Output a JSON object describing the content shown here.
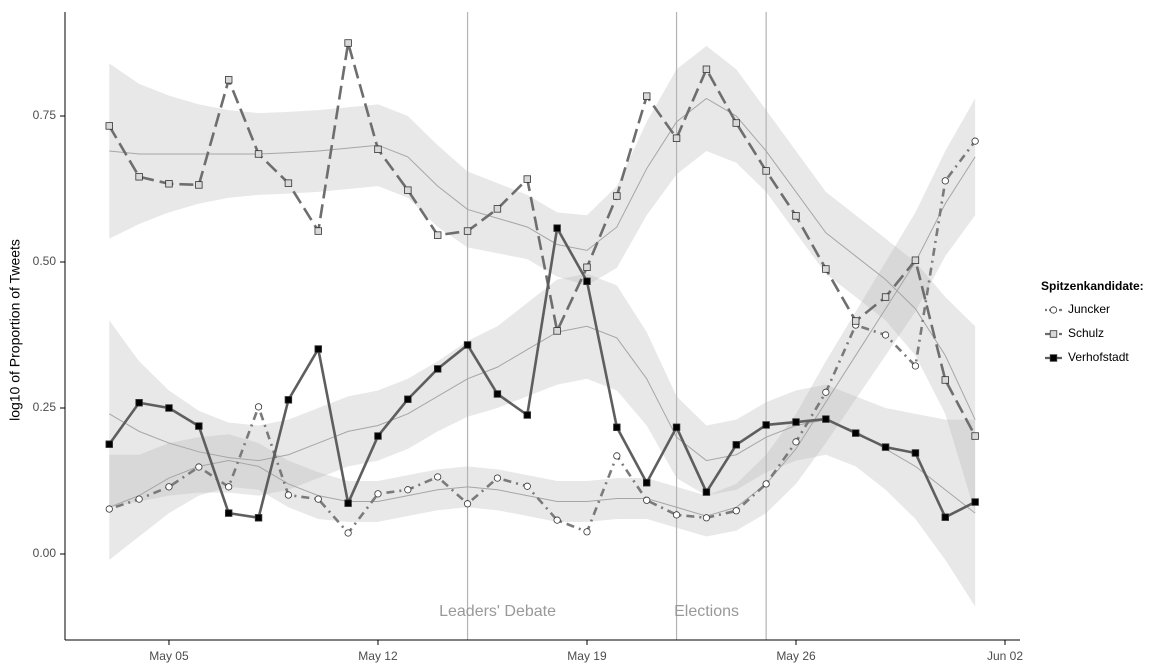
{
  "chart_data": {
    "type": "line",
    "y_label": "log10 of Proportion of Tweets",
    "legend_title": "Spitzenkandidate:",
    "legend": "right",
    "x": [
      "May 03",
      "May 04",
      "May 05",
      "May 06",
      "May 07",
      "May 08",
      "May 09",
      "May 10",
      "May 11",
      "May 12",
      "May 13",
      "May 14",
      "May 15",
      "May 16",
      "May 17",
      "May 18",
      "May 19",
      "May 20",
      "May 21",
      "May 22",
      "May 23",
      "May 24",
      "May 25",
      "May 26",
      "May 27",
      "May 28",
      "May 29",
      "May 30",
      "May 31",
      "Jun 01"
    ],
    "xlim": [
      "May 02",
      "Jun 02"
    ],
    "xticks": [
      "May 05",
      "May 12",
      "May 19",
      "May 26",
      "Jun 02"
    ],
    "ylim": [
      -0.15,
      0.93
    ],
    "yticks": [
      {
        "value": 0,
        "label": "0.00"
      },
      0.25,
      {
        "value": 0.5,
        "label": "0.50"
      },
      0.75
    ],
    "annotations": [
      {
        "x": "May 15",
        "label": "Leaders' Debate"
      },
      {
        "x": "May 22",
        "label": "Elections"
      },
      {
        "x": "May 25"
      }
    ],
    "series": [
      {
        "name": "Juncker",
        "color": "#7a7a7a",
        "marker": "circle",
        "marker_fill": "#ffffff",
        "linestyle": "dashdot",
        "values": [
          0.077,
          0.094,
          0.115,
          0.149,
          0.115,
          0.252,
          0.101,
          0.094,
          0.036,
          0.103,
          0.11,
          0.132,
          0.086,
          0.13,
          0.116,
          0.058,
          0.038,
          0.168,
          0.092,
          0.067,
          0.062,
          0.074,
          0.12,
          0.192,
          0.277,
          0.392,
          0.375,
          0.322,
          0.639,
          0.707
        ],
        "fit": [
          0.08,
          0.1,
          0.13,
          0.15,
          0.16,
          0.15,
          0.12,
          0.1,
          0.09,
          0.09,
          0.1,
          0.11,
          0.115,
          0.11,
          0.1,
          0.09,
          0.09,
          0.095,
          0.095,
          0.08,
          0.065,
          0.08,
          0.12,
          0.18,
          0.26,
          0.34,
          0.42,
          0.5,
          0.6,
          0.68
        ],
        "lower": [
          -0.01,
          0.03,
          0.07,
          0.1,
          0.115,
          0.11,
          0.08,
          0.06,
          0.055,
          0.055,
          0.065,
          0.075,
          0.08,
          0.075,
          0.065,
          0.055,
          0.055,
          0.06,
          0.06,
          0.045,
          0.03,
          0.04,
          0.07,
          0.12,
          0.19,
          0.265,
          0.34,
          0.415,
          0.51,
          0.58
        ],
        "upper": [
          0.17,
          0.17,
          0.19,
          0.2,
          0.205,
          0.19,
          0.16,
          0.14,
          0.125,
          0.125,
          0.135,
          0.145,
          0.15,
          0.145,
          0.135,
          0.125,
          0.125,
          0.13,
          0.13,
          0.115,
          0.1,
          0.12,
          0.17,
          0.24,
          0.33,
          0.415,
          0.5,
          0.585,
          0.69,
          0.78
        ]
      },
      {
        "name": "Schulz",
        "color": "#6e6e6e",
        "marker": "square",
        "marker_fill": "#d9d9d9",
        "linestyle": "dashed",
        "values": [
          0.733,
          0.646,
          0.634,
          0.632,
          0.812,
          0.685,
          0.635,
          0.553,
          0.875,
          0.693,
          0.623,
          0.546,
          0.553,
          0.591,
          0.642,
          0.382,
          0.491,
          0.613,
          0.784,
          0.712,
          0.83,
          0.738,
          0.656,
          0.579,
          0.488,
          0.399,
          0.44,
          0.503,
          0.298,
          0.202
        ],
        "fit": [
          0.69,
          0.685,
          0.685,
          0.685,
          0.685,
          0.685,
          0.687,
          0.69,
          0.695,
          0.7,
          0.68,
          0.63,
          0.59,
          0.575,
          0.56,
          0.53,
          0.52,
          0.56,
          0.66,
          0.74,
          0.78,
          0.75,
          0.69,
          0.62,
          0.55,
          0.51,
          0.47,
          0.42,
          0.34,
          0.23
        ],
        "lower": [
          0.54,
          0.565,
          0.585,
          0.6,
          0.61,
          0.615,
          0.617,
          0.62,
          0.625,
          0.63,
          0.61,
          0.56,
          0.525,
          0.515,
          0.505,
          0.475,
          0.46,
          0.49,
          0.58,
          0.65,
          0.69,
          0.67,
          0.62,
          0.55,
          0.48,
          0.44,
          0.4,
          0.34,
          0.24,
          0.07
        ],
        "upper": [
          0.84,
          0.805,
          0.785,
          0.77,
          0.76,
          0.755,
          0.757,
          0.76,
          0.765,
          0.77,
          0.75,
          0.7,
          0.655,
          0.635,
          0.615,
          0.585,
          0.58,
          0.63,
          0.74,
          0.83,
          0.87,
          0.83,
          0.76,
          0.69,
          0.62,
          0.58,
          0.54,
          0.5,
          0.44,
          0.39
        ]
      },
      {
        "name": "Verhofstadt",
        "color": "#5e5e5e",
        "marker": "square",
        "marker_fill": "#000000",
        "linestyle": "solid",
        "values": [
          0.188,
          0.259,
          0.25,
          0.219,
          0.07,
          0.062,
          0.264,
          0.351,
          0.087,
          0.202,
          0.265,
          0.317,
          0.358,
          0.274,
          0.238,
          0.558,
          0.467,
          0.217,
          0.122,
          0.217,
          0.106,
          0.187,
          0.221,
          0.226,
          0.231,
          0.207,
          0.183,
          0.173,
          0.063,
          0.089
        ],
        "fit": [
          0.24,
          0.21,
          0.19,
          0.175,
          0.165,
          0.16,
          0.17,
          0.19,
          0.21,
          0.22,
          0.24,
          0.27,
          0.3,
          0.32,
          0.35,
          0.38,
          0.39,
          0.37,
          0.3,
          0.2,
          0.16,
          0.17,
          0.2,
          0.22,
          0.23,
          0.21,
          0.18,
          0.15,
          0.11,
          0.07
        ],
        "lower": [
          0.08,
          0.09,
          0.1,
          0.105,
          0.105,
          0.1,
          0.11,
          0.13,
          0.15,
          0.16,
          0.18,
          0.21,
          0.235,
          0.25,
          0.27,
          0.29,
          0.3,
          0.28,
          0.22,
          0.13,
          0.1,
          0.11,
          0.14,
          0.16,
          0.17,
          0.15,
          0.11,
          0.06,
          -0.01,
          -0.09
        ],
        "upper": [
          0.4,
          0.33,
          0.28,
          0.245,
          0.225,
          0.22,
          0.23,
          0.25,
          0.27,
          0.28,
          0.3,
          0.33,
          0.365,
          0.39,
          0.43,
          0.47,
          0.48,
          0.46,
          0.38,
          0.27,
          0.22,
          0.23,
          0.26,
          0.28,
          0.29,
          0.27,
          0.25,
          0.24,
          0.23,
          0.23
        ]
      }
    ]
  }
}
